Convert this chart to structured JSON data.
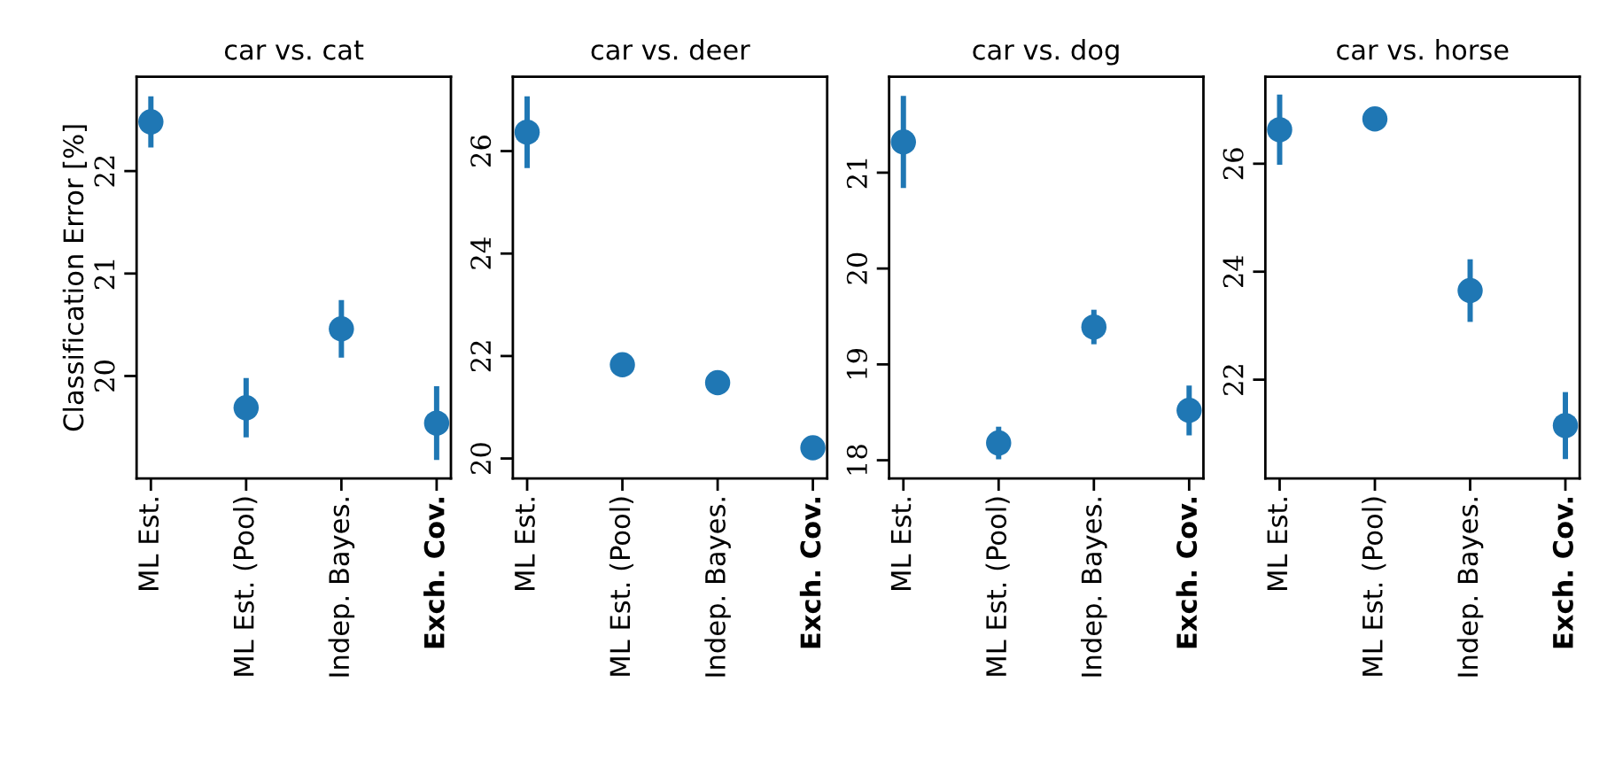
{
  "chart_data": [
    {
      "type": "scatter",
      "title": "car vs. cat",
      "ylabel": "Classification Error [%]",
      "categories": [
        "ML Est.",
        "ML Est. (Pool)",
        "Indep. Bayes.",
        "Exch. Cov."
      ],
      "values": [
        22.48,
        19.69,
        20.46,
        19.54
      ],
      "errors": [
        0.25,
        0.29,
        0.28,
        0.36
      ],
      "color": "#1f77b4",
      "marker": "circle",
      "ylim": [
        19.0,
        22.92
      ],
      "yticks": [
        20,
        21,
        22
      ]
    },
    {
      "type": "scatter",
      "title": "car vs. deer",
      "categories": [
        "ML Est.",
        "ML Est. (Pool)",
        "Indep. Bayes.",
        "Exch. Cov."
      ],
      "values": [
        26.37,
        21.83,
        21.48,
        20.21
      ],
      "errors": [
        0.7,
        null,
        null,
        null
      ],
      "color": "#1f77b4",
      "marker": "circle",
      "ylim": [
        19.61,
        27.45
      ],
      "yticks": [
        20,
        22,
        24,
        26
      ]
    },
    {
      "type": "scatter",
      "title": "car vs. dog",
      "categories": [
        "ML Est.",
        "ML Est. (Pool)",
        "Indep. Bayes.",
        "Exch. Cov."
      ],
      "values": [
        21.32,
        18.18,
        19.39,
        18.52
      ],
      "errors": [
        0.48,
        0.17,
        0.18,
        0.26
      ],
      "color": "#1f77b4",
      "marker": "circle",
      "ylim": [
        17.81,
        22.0
      ],
      "yticks": [
        18,
        19,
        20,
        21
      ]
    },
    {
      "type": "scatter",
      "title": "car vs. horse",
      "categories": [
        "ML Est.",
        "ML Est. (Pool)",
        "Indep. Bayes.",
        "Exch. Cov."
      ],
      "values": [
        26.63,
        26.83,
        23.65,
        21.15
      ],
      "errors": [
        0.65,
        null,
        0.58,
        0.62
      ],
      "color": "#1f77b4",
      "marker": "circle",
      "ylim": [
        20.17,
        27.61
      ],
      "yticks": [
        22,
        24,
        26
      ]
    }
  ]
}
